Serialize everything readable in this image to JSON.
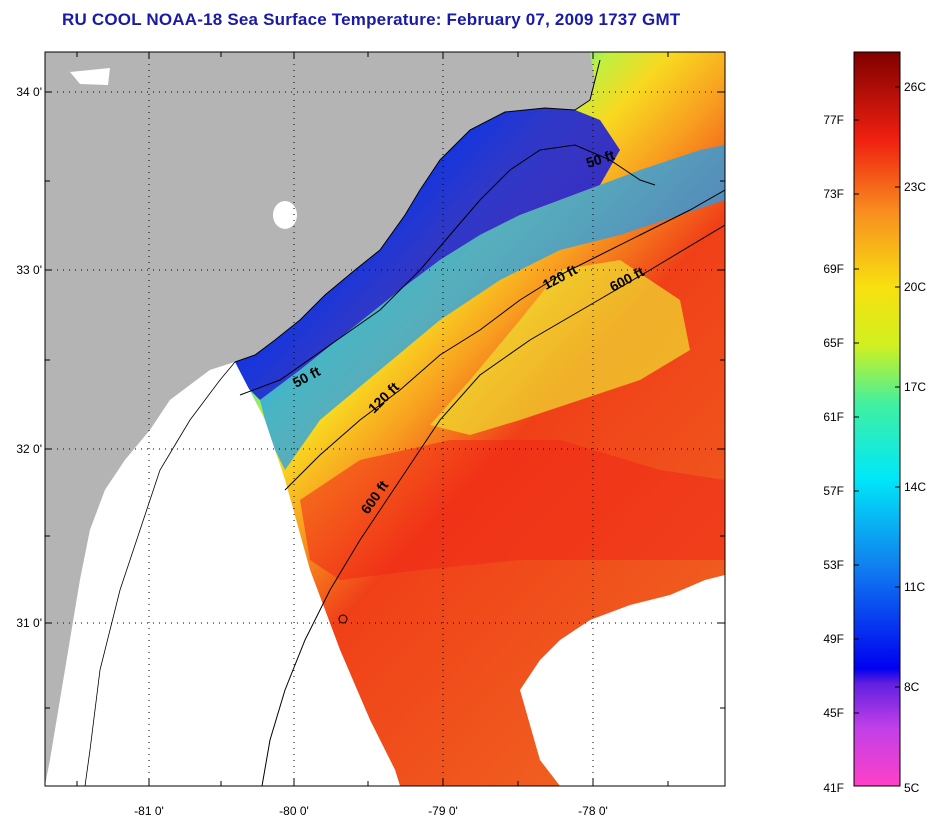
{
  "title": "RU COOL  NOAA-18  Sea Surface Temperature:  February 07, 2009 1737 GMT",
  "latitude_labels": [
    "34 0'",
    "33 0'",
    "32 0'",
    "31 0'"
  ],
  "longitude_labels": [
    "-81 0'",
    "-80 0'",
    "-79 0'",
    "-78 0'"
  ],
  "contour_labels": [
    "50 ft",
    "120 ft",
    "600 ft",
    "50 ft",
    "120 ft",
    "600 ft"
  ],
  "colorbar": {
    "fahrenheit_labels": [
      "77F",
      "73F",
      "69F",
      "65F",
      "61F",
      "57F",
      "53F",
      "49F",
      "45F",
      "41F"
    ],
    "celsius_labels": [
      "26C",
      "23C",
      "20C",
      "17C",
      "14C",
      "11C",
      "8C",
      "5C"
    ],
    "range_f": [
      41,
      80
    ],
    "range_c": [
      5,
      27
    ]
  },
  "colors": {
    "land": "#b4b4b4",
    "title": "#1a1aa8",
    "cloud": "#ffffff"
  }
}
